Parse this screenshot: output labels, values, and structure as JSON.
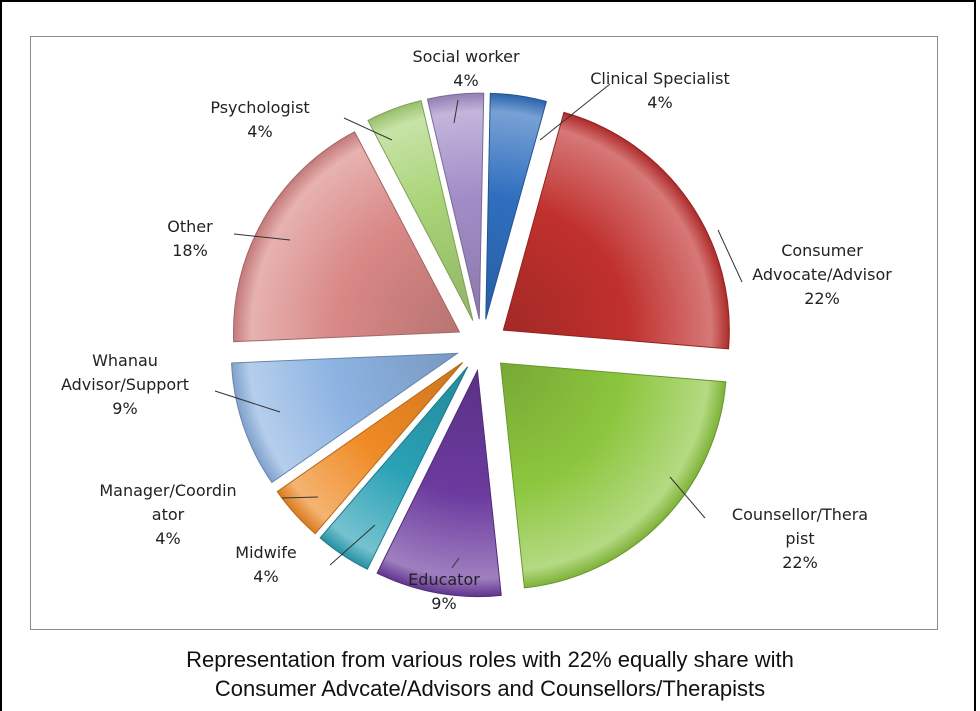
{
  "chart_data": {
    "type": "pie",
    "exploded": true,
    "slices": [
      {
        "label": [
          "Clinical Specialist"
        ],
        "percent_label": "4%",
        "value": 4,
        "color": "#2f6fbf"
      },
      {
        "label": [
          "Consumer",
          "Advocate/Advisor"
        ],
        "percent_label": "22%",
        "value": 22,
        "color": "#c0302d"
      },
      {
        "label": [
          "Counsellor/Thera",
          "pist"
        ],
        "percent_label": "22%",
        "value": 22,
        "color": "#8cc63e"
      },
      {
        "label": [
          "Educator"
        ],
        "percent_label": "9%",
        "value": 9,
        "color": "#6b3a9e"
      },
      {
        "label": [
          "Midwife"
        ],
        "percent_label": "4%",
        "value": 4,
        "color": "#2aa1b5"
      },
      {
        "label": [
          "Manager/Coordin",
          "ator"
        ],
        "percent_label": "4%",
        "value": 4,
        "color": "#f08a24"
      },
      {
        "label": [
          "Whanau",
          "Advisor/Support"
        ],
        "percent_label": "9%",
        "value": 9,
        "color": "#8db3e2"
      },
      {
        "label": [
          "Other"
        ],
        "percent_label": "18%",
        "value": 18,
        "color": "#d98886"
      },
      {
        "label": [
          "Psychologist"
        ],
        "percent_label": "4%",
        "value": 4,
        "color": "#a9d477"
      },
      {
        "label": [
          "Social worker"
        ],
        "percent_label": "4%",
        "value": 4,
        "color": "#a38dc8"
      }
    ]
  },
  "caption": {
    "line1": "Representation from various roles with 22% equally share with",
    "line2": "Consumer Advcate/Advisors and Counsellors/Therapists"
  }
}
